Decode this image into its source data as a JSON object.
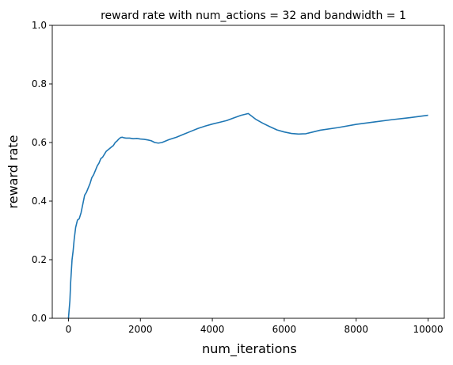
{
  "chart_data": {
    "type": "line",
    "title": "reward rate with num_actions = 32 and bandwidth = 1",
    "xlabel": "num_iterations",
    "ylabel": "reward rate",
    "xlim": [
      -450,
      10450
    ],
    "ylim": [
      0,
      1
    ],
    "xticks": [
      0,
      2000,
      4000,
      6000,
      8000,
      10000
    ],
    "xtick_labels": [
      "0",
      "2000",
      "4000",
      "6000",
      "8000",
      "10000"
    ],
    "yticks": [
      0.0,
      0.2,
      0.4,
      0.6,
      0.8,
      1.0
    ],
    "ytick_labels": [
      "0.0",
      "0.2",
      "0.4",
      "0.6",
      "0.8",
      "1.0"
    ],
    "grid": false,
    "color": "#1f77b4",
    "series": [
      {
        "x": [
          0,
          20,
          40,
          60,
          80,
          100,
          130,
          160,
          200,
          250,
          300,
          350,
          400,
          450,
          500,
          550,
          600,
          650,
          700,
          750,
          800,
          850,
          900,
          950,
          1000,
          1050,
          1100,
          1150,
          1200,
          1250,
          1300,
          1350,
          1400,
          1450,
          1500,
          1550,
          1600,
          1700,
          1800,
          1900,
          2000,
          2100,
          2200,
          2300,
          2400,
          2500,
          2600,
          2700,
          2800,
          3000,
          3200,
          3400,
          3600,
          3800,
          4000,
          4200,
          4400,
          4600,
          4800,
          5000,
          5200,
          5400,
          5600,
          5800,
          6000,
          6200,
          6400,
          6600,
          6800,
          7000,
          7500,
          8000,
          8500,
          9000,
          9500,
          10000
        ],
        "y": [
          0.0,
          0.03,
          0.06,
          0.12,
          0.16,
          0.2,
          0.23,
          0.27,
          0.31,
          0.335,
          0.34,
          0.36,
          0.39,
          0.42,
          0.43,
          0.445,
          0.46,
          0.48,
          0.49,
          0.505,
          0.52,
          0.53,
          0.545,
          0.55,
          0.56,
          0.57,
          0.575,
          0.58,
          0.585,
          0.59,
          0.6,
          0.605,
          0.612,
          0.617,
          0.618,
          0.616,
          0.615,
          0.615,
          0.613,
          0.614,
          0.612,
          0.611,
          0.609,
          0.606,
          0.6,
          0.598,
          0.6,
          0.605,
          0.61,
          0.618,
          0.628,
          0.638,
          0.648,
          0.656,
          0.663,
          0.669,
          0.675,
          0.684,
          0.693,
          0.699,
          0.68,
          0.666,
          0.654,
          0.643,
          0.636,
          0.631,
          0.629,
          0.63,
          0.636,
          0.642,
          0.651,
          0.662,
          0.67,
          0.678,
          0.685,
          0.693
        ]
      }
    ]
  }
}
